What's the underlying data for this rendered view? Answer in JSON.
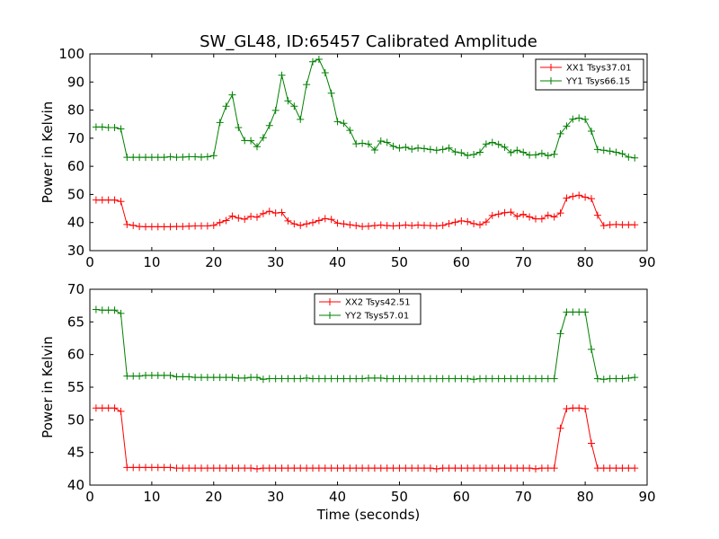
{
  "figure": {
    "title": "SW_GL48, ID:65457 Calibrated Amplitude",
    "xlabel": "Time (seconds)"
  },
  "chart_data": [
    {
      "type": "line",
      "ylabel": "Power in Kelvin",
      "xlim": [
        0,
        90
      ],
      "ylim": [
        30,
        100
      ],
      "xticks": [
        0,
        10,
        20,
        30,
        40,
        50,
        60,
        70,
        80,
        90
      ],
      "yticks": [
        30,
        40,
        50,
        60,
        70,
        80,
        90,
        100
      ],
      "legend_position": "top-right",
      "x": [
        1,
        2,
        3,
        4,
        5,
        6,
        7,
        8,
        9,
        10,
        11,
        12,
        13,
        14,
        15,
        16,
        17,
        18,
        19,
        20,
        21,
        22,
        23,
        24,
        25,
        26,
        27,
        28,
        29,
        30,
        31,
        32,
        33,
        34,
        35,
        36,
        37,
        38,
        39,
        40,
        41,
        42,
        43,
        44,
        45,
        46,
        47,
        48,
        49,
        50,
        51,
        52,
        53,
        54,
        55,
        56,
        57,
        58,
        59,
        60,
        61,
        62,
        63,
        64,
        65,
        66,
        67,
        68,
        69,
        70,
        71,
        72,
        73,
        74,
        75,
        76,
        77,
        78,
        79,
        80,
        81,
        82,
        83,
        84,
        85,
        86,
        87,
        88
      ],
      "series": [
        {
          "name": "XX1 Tsys37.01",
          "color": "#ff0000",
          "values": [
            48,
            48,
            48,
            48,
            47.5,
            39.3,
            39,
            38.6,
            38.5,
            38.5,
            38.5,
            38.5,
            38.5,
            38.6,
            38.6,
            38.7,
            38.8,
            38.8,
            38.8,
            39,
            40,
            40.7,
            42.3,
            41.6,
            41.2,
            42.2,
            41.9,
            43.2,
            44,
            43.4,
            43.6,
            40.6,
            39.5,
            39,
            39.5,
            40,
            40.7,
            41.4,
            41.1,
            39.8,
            39.5,
            39.2,
            38.9,
            38.6,
            38.7,
            38.9,
            39.1,
            38.9,
            38.8,
            38.9,
            39.1,
            38.9,
            39.1,
            39,
            38.9,
            38.8,
            39,
            39.6,
            40.1,
            40.6,
            40.3,
            39.6,
            39.2,
            40.2,
            42.5,
            43,
            43.5,
            43.7,
            42.2,
            42.9,
            42,
            41.3,
            41.3,
            42.6,
            42,
            43.4,
            48.7,
            49.3,
            49.7,
            49,
            48.5,
            42.6,
            38.9,
            39.2,
            39.3,
            39.2,
            39.2,
            39.2
          ]
        },
        {
          "name": "YY1 Tsys66.15",
          "color": "#008000",
          "values": [
            74,
            74,
            73.8,
            73.8,
            73.3,
            63.2,
            63.2,
            63.2,
            63.2,
            63.2,
            63.2,
            63.2,
            63.4,
            63.2,
            63.3,
            63.4,
            63.4,
            63.3,
            63.4,
            63.8,
            75.6,
            81.4,
            85.4,
            73.8,
            69.2,
            69.1,
            67,
            70.2,
            74.5,
            79.9,
            92.4,
            83.3,
            81.4,
            76.7,
            89.1,
            97.2,
            98.1,
            93.3,
            86,
            75.9,
            75.3,
            72.8,
            68,
            68.2,
            67.9,
            65.8,
            69,
            68.5,
            67.1,
            66.5,
            66.8,
            66.1,
            66.5,
            66.3,
            66,
            65.7,
            66,
            66.5,
            65.1,
            64.8,
            63.9,
            64.2,
            65,
            67.9,
            68.5,
            67.8,
            66.8,
            64.9,
            65.7,
            65,
            64,
            64.1,
            64.6,
            63.8,
            64.3,
            71.6,
            74.3,
            76.8,
            77.2,
            76.7,
            72.5,
            66,
            65.7,
            65.4,
            65,
            64.5,
            63.3,
            63
          ]
        }
      ]
    },
    {
      "type": "line",
      "ylabel": "Power in Kelvin",
      "xlabel": "Time (seconds)",
      "xlim": [
        0,
        90
      ],
      "ylim": [
        40,
        70
      ],
      "xticks": [
        0,
        10,
        20,
        30,
        40,
        50,
        60,
        70,
        80,
        90
      ],
      "yticks": [
        40,
        45,
        50,
        55,
        60,
        65,
        70
      ],
      "legend_position": "top-center",
      "x": [
        1,
        2,
        3,
        4,
        5,
        6,
        7,
        8,
        9,
        10,
        11,
        12,
        13,
        14,
        15,
        16,
        17,
        18,
        19,
        20,
        21,
        22,
        23,
        24,
        25,
        26,
        27,
        28,
        29,
        30,
        31,
        32,
        33,
        34,
        35,
        36,
        37,
        38,
        39,
        40,
        41,
        42,
        43,
        44,
        45,
        46,
        47,
        48,
        49,
        50,
        51,
        52,
        53,
        54,
        55,
        56,
        57,
        58,
        59,
        60,
        61,
        62,
        63,
        64,
        65,
        66,
        67,
        68,
        69,
        70,
        71,
        72,
        73,
        74,
        75,
        76,
        77,
        78,
        79,
        80,
        81,
        82,
        83,
        84,
        85,
        86,
        87,
        88
      ],
      "series": [
        {
          "name": "XX2 Tsys42.51",
          "color": "#ff0000",
          "values": [
            51.8,
            51.8,
            51.8,
            51.8,
            51.3,
            42.7,
            42.7,
            42.7,
            42.7,
            42.7,
            42.7,
            42.7,
            42.7,
            42.6,
            42.6,
            42.6,
            42.6,
            42.6,
            42.6,
            42.6,
            42.6,
            42.6,
            42.6,
            42.6,
            42.6,
            42.6,
            42.5,
            42.6,
            42.6,
            42.6,
            42.6,
            42.6,
            42.6,
            42.6,
            42.6,
            42.6,
            42.6,
            42.6,
            42.6,
            42.6,
            42.6,
            42.6,
            42.6,
            42.6,
            42.6,
            42.6,
            42.6,
            42.6,
            42.6,
            42.6,
            42.6,
            42.6,
            42.6,
            42.6,
            42.6,
            42.5,
            42.6,
            42.6,
            42.6,
            42.6,
            42.6,
            42.6,
            42.6,
            42.6,
            42.6,
            42.6,
            42.6,
            42.6,
            42.6,
            42.6,
            42.6,
            42.5,
            42.6,
            42.6,
            42.6,
            48.7,
            51.7,
            51.8,
            51.8,
            51.7,
            46.4,
            42.6,
            42.6,
            42.6,
            42.6,
            42.6,
            42.6,
            42.6
          ]
        },
        {
          "name": "YY2 Tsys57.01",
          "color": "#008000",
          "values": [
            66.9,
            66.8,
            66.8,
            66.8,
            66.3,
            56.7,
            56.7,
            56.7,
            56.8,
            56.8,
            56.8,
            56.8,
            56.8,
            56.6,
            56.6,
            56.6,
            56.5,
            56.5,
            56.5,
            56.5,
            56.5,
            56.5,
            56.5,
            56.4,
            56.4,
            56.5,
            56.5,
            56.2,
            56.3,
            56.3,
            56.3,
            56.3,
            56.3,
            56.3,
            56.4,
            56.3,
            56.3,
            56.3,
            56.3,
            56.3,
            56.3,
            56.3,
            56.3,
            56.3,
            56.4,
            56.4,
            56.4,
            56.3,
            56.3,
            56.3,
            56.3,
            56.3,
            56.3,
            56.3,
            56.3,
            56.3,
            56.3,
            56.3,
            56.3,
            56.3,
            56.3,
            56.2,
            56.3,
            56.3,
            56.3,
            56.3,
            56.3,
            56.3,
            56.3,
            56.3,
            56.3,
            56.3,
            56.3,
            56.3,
            56.3,
            63.2,
            66.5,
            66.5,
            66.5,
            66.5,
            60.8,
            56.3,
            56.2,
            56.3,
            56.3,
            56.3,
            56.4,
            56.5
          ]
        }
      ]
    }
  ]
}
